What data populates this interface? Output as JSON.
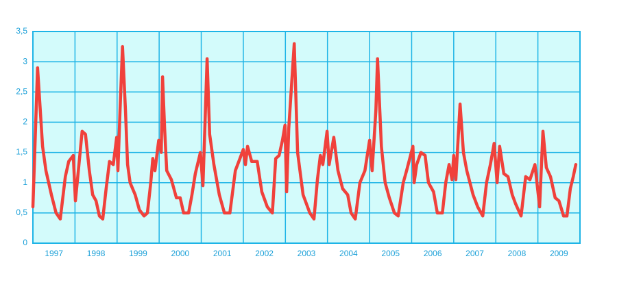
{
  "chart_data": {
    "type": "line",
    "x": [
      1997.0,
      1997.11,
      1997.23,
      1997.31,
      1997.44,
      1997.55,
      1997.65,
      1997.77,
      1997.85,
      1997.96,
      1998.01,
      1998.08,
      1998.17,
      1998.25,
      1998.34,
      1998.42,
      1998.5,
      1998.58,
      1998.66,
      1998.74,
      1998.82,
      1998.91,
      1998.99,
      1999.02,
      1999.07,
      1999.13,
      1999.2,
      1999.25,
      1999.31,
      1999.43,
      1999.53,
      1999.64,
      1999.72,
      1999.8,
      1999.85,
      1999.9,
      1999.99,
      2000.05,
      2000.08,
      2000.13,
      2000.18,
      2000.29,
      2000.41,
      2000.5,
      2000.58,
      2000.7,
      2000.78,
      2000.86,
      2000.98,
      2001.04,
      2001.09,
      2001.14,
      2001.2,
      2001.3,
      2001.43,
      2001.55,
      2001.68,
      2001.81,
      2001.92,
      2002.0,
      2002.05,
      2002.1,
      2002.2,
      2002.33,
      2002.44,
      2002.57,
      2002.69,
      2002.77,
      2002.85,
      2002.93,
      2002.99,
      2003.03,
      2003.08,
      2003.21,
      2003.29,
      2003.42,
      2003.58,
      2003.68,
      2003.76,
      2003.83,
      2003.89,
      2003.99,
      2004.04,
      2004.15,
      2004.25,
      2004.36,
      2004.48,
      2004.56,
      2004.66,
      2004.77,
      2004.89,
      2005.0,
      2005.06,
      2005.15,
      2005.19,
      2005.28,
      2005.37,
      2005.47,
      2005.59,
      2005.68,
      2005.8,
      2005.88,
      2006.03,
      2006.06,
      2006.12,
      2006.22,
      2006.32,
      2006.4,
      2006.52,
      2006.61,
      2006.73,
      2006.81,
      2006.89,
      2006.96,
      2007.0,
      2007.05,
      2007.15,
      2007.23,
      2007.31,
      2007.46,
      2007.57,
      2007.69,
      2007.78,
      2007.87,
      2007.96,
      2008.03,
      2008.09,
      2008.19,
      2008.29,
      2008.39,
      2008.47,
      2008.6,
      2008.71,
      2008.81,
      2008.93,
      2009.04,
      2009.12,
      2009.2,
      2009.3,
      2009.41,
      2009.5,
      2009.61,
      2009.69,
      2009.77,
      2009.84,
      2009.9
    ],
    "series": [
      {
        "color": "#f0413b",
        "values": [
          0.6,
          2.9,
          1.6,
          1.2,
          0.8,
          0.5,
          0.4,
          1.1,
          1.35,
          1.45,
          0.7,
          1.2,
          1.85,
          1.8,
          1.2,
          0.8,
          0.7,
          0.45,
          0.4,
          0.9,
          1.35,
          1.3,
          1.75,
          1.2,
          2.2,
          3.25,
          2.2,
          1.3,
          1.0,
          0.8,
          0.55,
          0.45,
          0.5,
          1.0,
          1.4,
          1.2,
          1.7,
          1.5,
          2.75,
          1.9,
          1.2,
          1.05,
          0.75,
          0.75,
          0.5,
          0.5,
          0.8,
          1.15,
          1.5,
          0.95,
          2.0,
          3.05,
          1.8,
          1.3,
          0.8,
          0.5,
          0.5,
          1.2,
          1.4,
          1.55,
          1.3,
          1.6,
          1.35,
          1.35,
          0.85,
          0.6,
          0.5,
          1.4,
          1.45,
          1.7,
          1.95,
          0.85,
          1.9,
          3.3,
          1.5,
          0.8,
          0.5,
          0.4,
          1.05,
          1.45,
          1.3,
          1.85,
          1.3,
          1.75,
          1.2,
          0.9,
          0.8,
          0.5,
          0.4,
          1.0,
          1.2,
          1.7,
          1.2,
          2.2,
          3.05,
          1.6,
          1.0,
          0.75,
          0.5,
          0.45,
          1.0,
          1.2,
          1.6,
          1.0,
          1.3,
          1.5,
          1.45,
          1.0,
          0.85,
          0.5,
          0.5,
          1.0,
          1.3,
          1.05,
          1.45,
          1.05,
          2.3,
          1.5,
          1.2,
          0.8,
          0.6,
          0.45,
          1.0,
          1.3,
          1.65,
          1.0,
          1.6,
          1.15,
          1.1,
          0.8,
          0.65,
          0.45,
          1.1,
          1.05,
          1.3,
          0.6,
          1.85,
          1.25,
          1.1,
          0.75,
          0.7,
          0.45,
          0.45,
          0.9,
          1.1,
          1.3
        ]
      }
    ],
    "xlim": [
      1997,
      2010
    ],
    "xgrid": [
      1997,
      1998,
      1999,
      2000,
      2001,
      2002,
      2003,
      2004,
      2005,
      2006,
      2007,
      2008,
      2009,
      2010
    ],
    "xticks": [
      {
        "value": 1997.5,
        "label": "1997"
      },
      {
        "value": 1998.5,
        "label": "1998"
      },
      {
        "value": 1999.5,
        "label": "1999"
      },
      {
        "value": 2000.5,
        "label": "2000"
      },
      {
        "value": 2001.5,
        "label": "2001"
      },
      {
        "value": 2002.5,
        "label": "2002"
      },
      {
        "value": 2003.5,
        "label": "2003"
      },
      {
        "value": 2004.5,
        "label": "2004"
      },
      {
        "value": 2005.5,
        "label": "2005"
      },
      {
        "value": 2006.5,
        "label": "2006"
      },
      {
        "value": 2007.5,
        "label": "2007"
      },
      {
        "value": 2008.5,
        "label": "2008"
      },
      {
        "value": 2009.5,
        "label": "2009"
      }
    ],
    "ylim": [
      0,
      3.5
    ],
    "yticks": [
      0,
      {
        "value": 0.5,
        "label": "0,5"
      },
      1,
      {
        "value": 1.5,
        "label": "1,5"
      },
      2,
      {
        "value": 2.5,
        "label": "2,5"
      },
      3,
      {
        "value": 3.5,
        "label": "3,5"
      }
    ],
    "grid": true
  }
}
